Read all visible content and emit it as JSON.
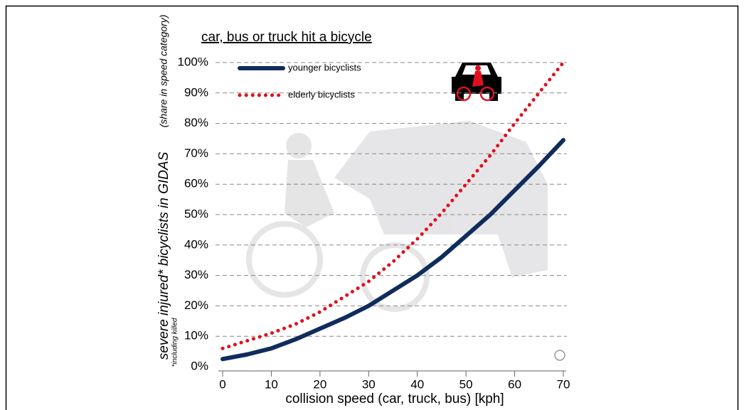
{
  "chart_data": {
    "type": "line",
    "title": "car, bus or truck hit a bicycle",
    "xlabel": "collision speed (car, truck, bus) [kph]",
    "ylabel": "severe injured* bicyclists in GIDAS",
    "ylabel_note": "(share in speed category)",
    "footnote": "*including killed",
    "x": [
      0,
      5,
      10,
      15,
      20,
      25,
      30,
      35,
      40,
      45,
      50,
      55,
      60,
      65,
      70
    ],
    "series": [
      {
        "name": "younger bicyclists",
        "color": "#0f2c5c",
        "style": "solid",
        "values": [
          2.5,
          4,
          6,
          9,
          12.5,
          16,
          20,
          25,
          30,
          36,
          43,
          50,
          58,
          66,
          74.5
        ]
      },
      {
        "name": "elderly bicyclists",
        "color": "#e0101e",
        "style": "dotted",
        "values": [
          6,
          8.5,
          11,
          14,
          18,
          23,
          28,
          34.5,
          42,
          50.5,
          60,
          69.5,
          80,
          90,
          100
        ]
      }
    ],
    "xlim": [
      0,
      70
    ],
    "xticks": [
      0,
      10,
      20,
      30,
      40,
      50,
      60,
      70
    ],
    "ylim": [
      0,
      100
    ],
    "yticks": [
      {
        "value": 0,
        "label": "0%"
      },
      {
        "value": 10,
        "label": "10%"
      },
      {
        "value": 20,
        "label": "20%"
      },
      {
        "value": 30,
        "label": "30%"
      },
      {
        "value": 40,
        "label": "40%"
      },
      {
        "value": 50,
        "label": "50%"
      },
      {
        "value": 60,
        "label": "60%"
      },
      {
        "value": 70,
        "label": "70%"
      },
      {
        "value": 80,
        "label": "80%"
      },
      {
        "value": 90,
        "label": "90%"
      },
      {
        "value": 100,
        "label": "100%"
      }
    ],
    "grid": true
  }
}
